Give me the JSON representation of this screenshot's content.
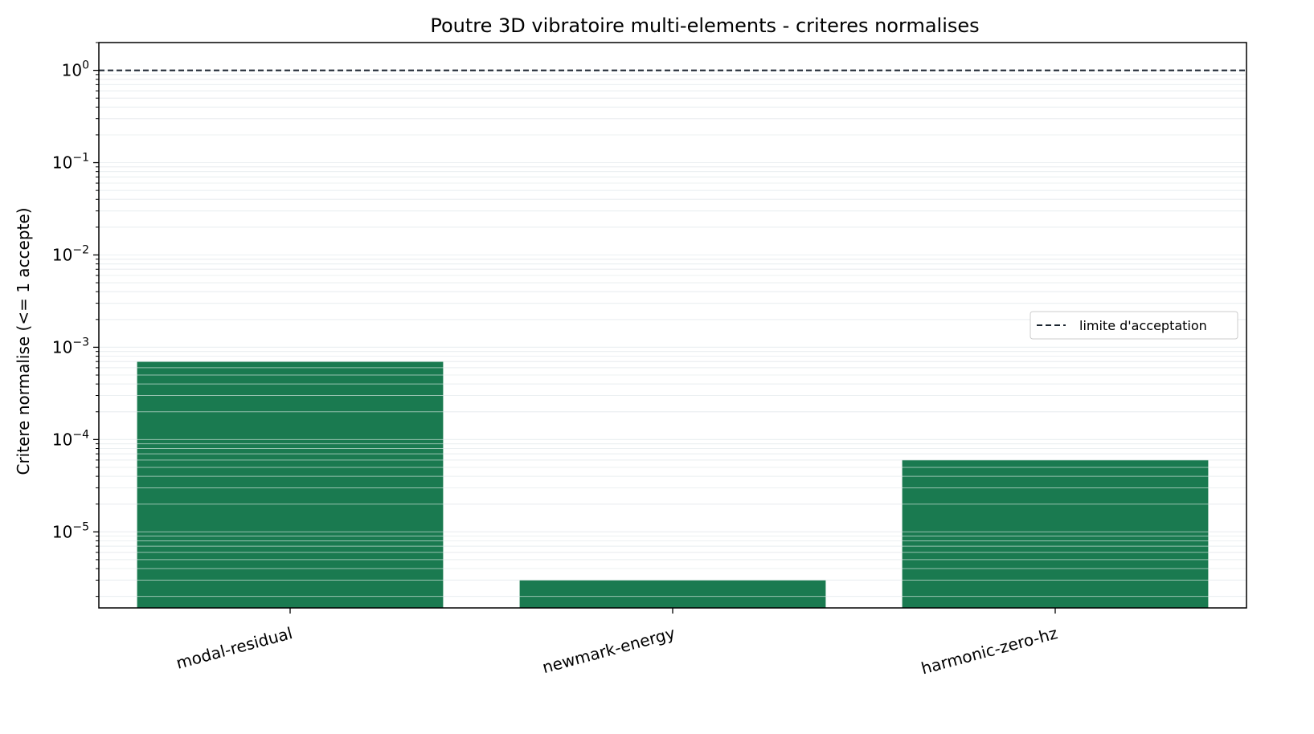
{
  "chart_data": {
    "type": "bar",
    "title": "Poutre 3D vibratoire multi-elements - criteres normalises",
    "xlabel": "",
    "ylabel": "Critere normalise (<= 1 accepte)",
    "categories": [
      "modal-residual",
      "newmark-energy",
      "harmonic-zero-hz"
    ],
    "values": [
      0.0007,
      3e-06,
      6e-05
    ],
    "yscale": "log",
    "ylim": [
      1.5e-06,
      2
    ],
    "ytick_labels": [
      {
        "base": "10",
        "exp": "−5"
      },
      {
        "base": "10",
        "exp": "−4"
      },
      {
        "base": "10",
        "exp": "−3"
      },
      {
        "base": "10",
        "exp": "−2"
      },
      {
        "base": "10",
        "exp": "−1"
      },
      {
        "base": "10",
        "exp": "0"
      }
    ],
    "threshold": 1,
    "grid": true,
    "legend": {
      "position": "center-right",
      "entries": [
        "limite d'acceptation"
      ]
    },
    "colors": {
      "bar": "#1a7a50",
      "grid": "#d6dde2",
      "threshold": "#1b2530"
    }
  }
}
